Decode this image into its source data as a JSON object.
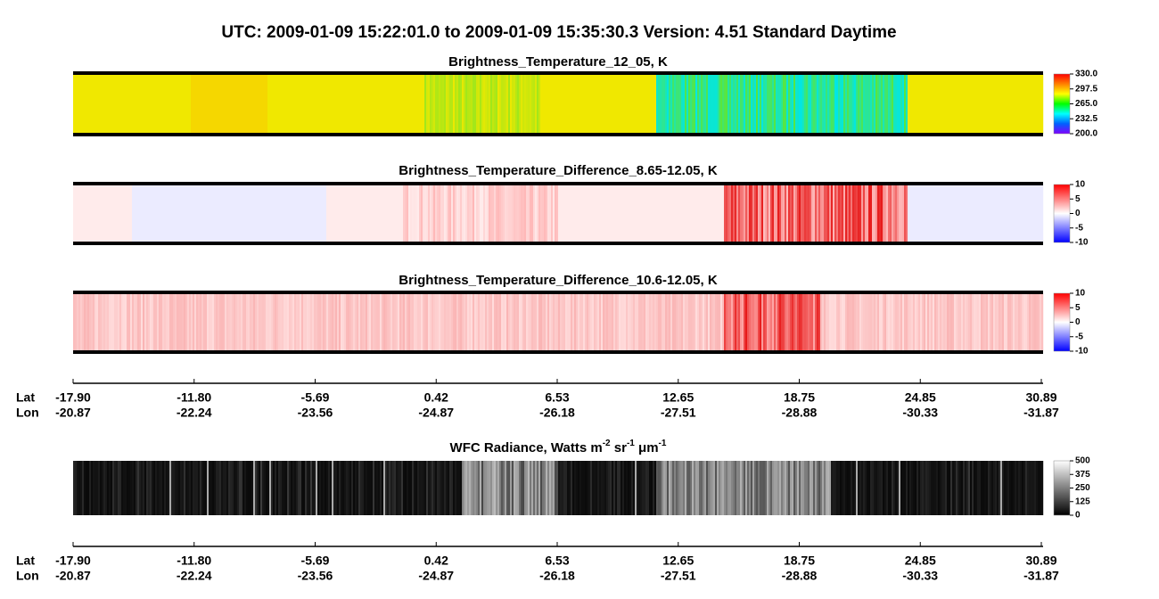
{
  "title": "UTC:  2009-01-09   15:22:01.0  to  2009-01-09   15:35:30.3    Version: 4.51  Standard Daytime",
  "chart_data": [
    {
      "type": "heatmap",
      "title": "Brightness_Temperature_12_05, K",
      "colors": [
        "#8000ff",
        "#0060ff",
        "#00ffff",
        "#00ff00",
        "#ffff00",
        "#ff8000",
        "#ff0000"
      ],
      "clim": [
        200,
        330
      ],
      "cticks": [
        {
          "value": 330,
          "label": "330.0"
        },
        {
          "value": 297.5,
          "label": "297.5"
        },
        {
          "value": 265,
          "label": "265.0"
        },
        {
          "value": 232.5,
          "label": "232.5"
        },
        {
          "value": 200,
          "label": "200.0"
        }
      ]
    },
    {
      "type": "heatmap",
      "title": "Brightness_Temperature_Difference_8.65-12.05, K",
      "colors": [
        "#0000ff",
        "#ffffff",
        "#ff0000"
      ],
      "clim": [
        -10,
        10
      ],
      "cticks": [
        10,
        5,
        0,
        -5,
        -10
      ]
    },
    {
      "type": "heatmap",
      "title": "Brightness_Temperature_Difference_10.6-12.05, K",
      "colors": [
        "#0000ff",
        "#ffffff",
        "#ff0000"
      ],
      "clim": [
        -10,
        10
      ],
      "cticks": [
        10,
        5,
        0,
        -5,
        -10
      ]
    },
    {
      "type": "heatmap",
      "title_parts": [
        "WFC Radiance, Watts m",
        "-2",
        " sr",
        "-1",
        " μm",
        "-1"
      ],
      "colors": [
        "#000000",
        "#ffffff"
      ],
      "clim": [
        0,
        500
      ],
      "cticks": [
        500,
        375,
        250,
        125,
        0
      ]
    }
  ],
  "x_axes": [
    {
      "row_labels": [
        "Lat",
        "Lon"
      ],
      "lat": [
        "-17.90",
        "-11.80",
        "-5.69",
        "0.42",
        "6.53",
        "12.65",
        "18.75",
        "24.85",
        "30.89"
      ],
      "lon": [
        "-20.87",
        "-22.24",
        "-23.56",
        "-24.87",
        "-26.18",
        "-27.51",
        "-28.88",
        "-30.33",
        "-31.87"
      ]
    },
    {
      "row_labels": [
        "Lat",
        "Lon"
      ],
      "lat": [
        "-17.90",
        "-11.80",
        "-5.69",
        "0.42",
        "6.53",
        "12.65",
        "18.75",
        "24.85",
        "30.89"
      ],
      "lon": [
        "-20.87",
        "-22.24",
        "-23.56",
        "-24.87",
        "-26.18",
        "-27.51",
        "-28.88",
        "-30.33",
        "-31.87"
      ]
    }
  ]
}
